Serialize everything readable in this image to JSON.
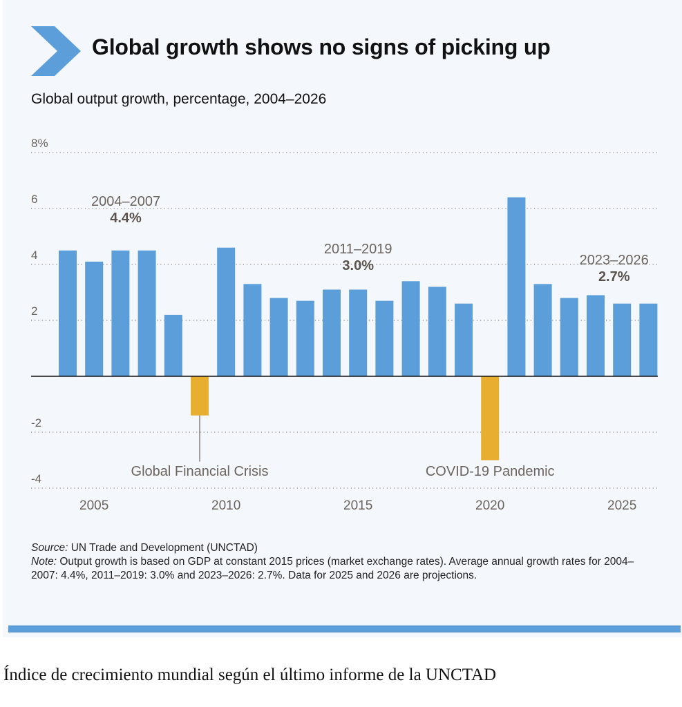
{
  "header": {
    "icon": "chevron-right-icon",
    "title": "Global growth shows no signs of picking up",
    "subtitle": "Global output growth, percentage, 2004–2026"
  },
  "colors": {
    "positive_bar": "#5B9ED9",
    "negative_bar": "#E8AE2F",
    "accent": "#5B9ED9",
    "panel_bg": "#F4F8FC"
  },
  "chart_data": {
    "type": "bar",
    "title": "Global output growth, percentage, 2004–2026",
    "xlabel": "",
    "ylabel": "",
    "ylim": [
      -4,
      8
    ],
    "yticks": [
      -4,
      -2,
      0,
      2,
      4,
      6,
      8
    ],
    "ytick_labels": [
      "-4",
      "-2",
      "",
      "2",
      "4",
      "6",
      "8%"
    ],
    "xtick_labels": [
      "2005",
      "2010",
      "2015",
      "2020",
      "2025"
    ],
    "xtick_years": [
      2005,
      2010,
      2015,
      2020,
      2025
    ],
    "grid": true,
    "categories": [
      2004,
      2005,
      2006,
      2007,
      2008,
      2009,
      2010,
      2011,
      2012,
      2013,
      2014,
      2015,
      2016,
      2017,
      2018,
      2019,
      2020,
      2021,
      2022,
      2023,
      2024,
      2025,
      2026
    ],
    "values": [
      4.5,
      4.1,
      4.5,
      4.5,
      2.2,
      -1.4,
      4.6,
      3.3,
      2.8,
      2.7,
      3.1,
      3.1,
      2.7,
      3.4,
      3.2,
      2.6,
      -3.0,
      6.4,
      3.3,
      2.8,
      2.9,
      2.6,
      2.6
    ],
    "annotations": [
      {
        "period": "2004–2007",
        "value": "4.4%",
        "center_year": 2006.2,
        "y": 6.1
      },
      {
        "period": "2011–2019",
        "value": "3.0%",
        "center_year": 2015.0,
        "y": 4.4
      },
      {
        "period": "2023–2026",
        "value": "2.7%",
        "center_year": 2024.7,
        "y": 4.0
      }
    ],
    "events": [
      {
        "label": "Global Financial Crisis",
        "year": 2009,
        "with_leader": true
      },
      {
        "label": "COVID-19 Pandemic",
        "year": 2020,
        "with_leader": false
      }
    ]
  },
  "notes": {
    "source_label": "Source:",
    "source_text": " UN Trade and Development (UNCTAD)",
    "note_label": "Note:",
    "note_text": " Output growth is based on GDP at constant 2015 prices (market exchange rates). Average annual growth rates for 2004–2007: 4.4%, 2011–2019: 3.0% and 2023–2026: 2.7%. Data for 2025 and 2026 are projections."
  },
  "caption": "Índice de crecimiento mundial según el último informe de la UNCTAD"
}
